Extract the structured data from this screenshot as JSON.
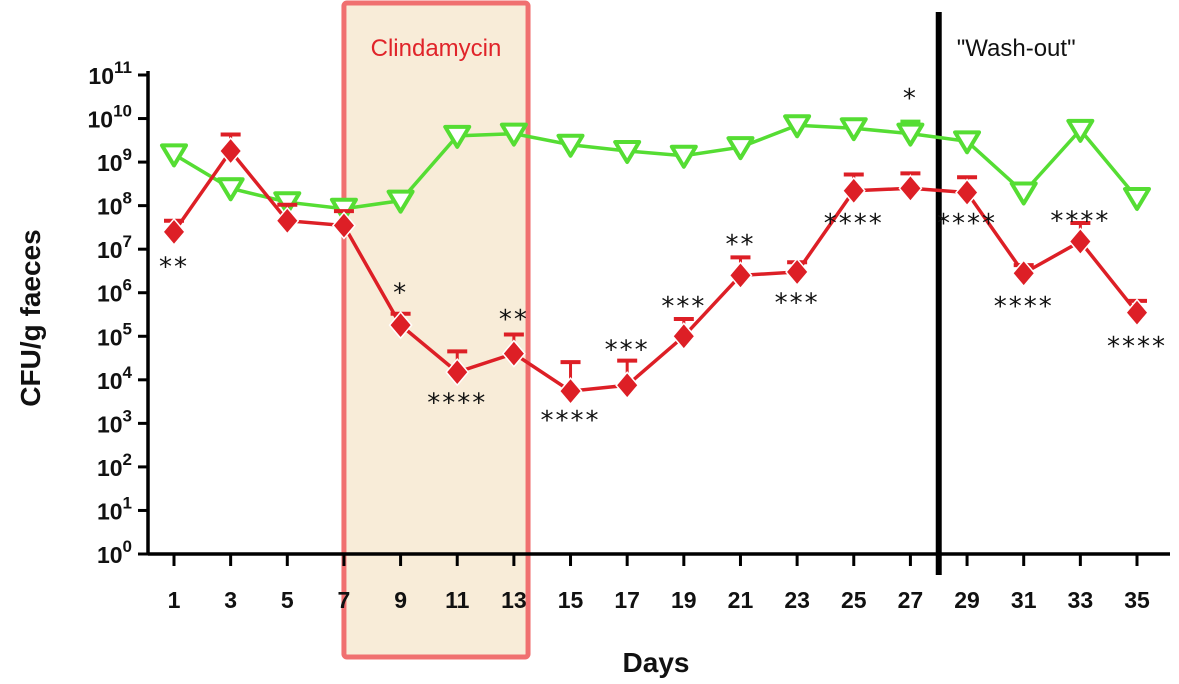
{
  "chart_data": {
    "type": "line",
    "xlabel": "Days",
    "ylabel": "CFU/g faeces",
    "log_scale_y": true,
    "ylim": [
      1,
      100000000000
    ],
    "xlim": [
      0,
      36
    ],
    "x_ticks": [
      1,
      3,
      5,
      7,
      9,
      11,
      13,
      15,
      17,
      19,
      21,
      23,
      25,
      27,
      29,
      31,
      33,
      35
    ],
    "y_ticks": [
      {
        "base": "10",
        "exp": "0",
        "value": 1
      },
      {
        "base": "10",
        "exp": "1",
        "value": 10
      },
      {
        "base": "10",
        "exp": "2",
        "value": 100
      },
      {
        "base": "10",
        "exp": "3",
        "value": 1000
      },
      {
        "base": "10",
        "exp": "4",
        "value": 10000
      },
      {
        "base": "10",
        "exp": "5",
        "value": 100000
      },
      {
        "base": "10",
        "exp": "6",
        "value": 1000000
      },
      {
        "base": "10",
        "exp": "7",
        "value": 10000000
      },
      {
        "base": "10",
        "exp": "8",
        "value": 100000000
      },
      {
        "base": "10",
        "exp": "9",
        "value": 1000000000
      },
      {
        "base": "10",
        "exp": "10",
        "value": 10000000000
      },
      {
        "base": "10",
        "exp": "11",
        "value": 100000000000
      }
    ],
    "series": [
      {
        "color": "#55dd33",
        "marker": "triangle-down",
        "points": [
          {
            "x": 1,
            "y": 1500000000,
            "err": 800000000
          },
          {
            "x": 3,
            "y": 250000000,
            "err": 150000000
          },
          {
            "x": 5,
            "y": 120000000,
            "err": 50000000
          },
          {
            "x": 7,
            "y": 85000000,
            "err": 30000000
          },
          {
            "x": 9,
            "y": 130000000,
            "err": 50000000
          },
          {
            "x": 11,
            "y": 4000000000,
            "err": 1500000000
          },
          {
            "x": 13,
            "y": 4500000000,
            "err": 1500000000
          },
          {
            "x": 15,
            "y": 2500000000,
            "err": 800000000
          },
          {
            "x": 17,
            "y": 1800000000,
            "err": 600000000
          },
          {
            "x": 19,
            "y": 1400000000,
            "err": 500000000
          },
          {
            "x": 21,
            "y": 2200000000,
            "err": 800000000
          },
          {
            "x": 23,
            "y": 7000000000,
            "err": 2500000000
          },
          {
            "x": 25,
            "y": 6000000000,
            "err": 2000000000
          },
          {
            "x": 27,
            "y": 4500000000,
            "err": 4000000000
          },
          {
            "x": 29,
            "y": 3000000000,
            "err": 1000000000
          },
          {
            "x": 31,
            "y": 200000000,
            "err": 50000000
          },
          {
            "x": 33,
            "y": 5500000000,
            "err": 2000000000
          },
          {
            "x": 35,
            "y": 150000000,
            "err": 40000000
          }
        ]
      },
      {
        "color": "#dd1f26",
        "marker": "diamond",
        "points": [
          {
            "x": 1,
            "y": 25000000,
            "err": 20000000
          },
          {
            "x": 3,
            "y": 1800000000,
            "err": 2500000000
          },
          {
            "x": 5,
            "y": 45000000,
            "err": 60000000
          },
          {
            "x": 7,
            "y": 35000000,
            "err": 40000000
          },
          {
            "x": 9,
            "y": 180000,
            "err": 150000
          },
          {
            "x": 11,
            "y": 15000,
            "err": 30000
          },
          {
            "x": 13,
            "y": 40000,
            "err": 70000
          },
          {
            "x": 15,
            "y": 5500,
            "err": 20000
          },
          {
            "x": 17,
            "y": 7500,
            "err": 20000
          },
          {
            "x": 19,
            "y": 100000,
            "err": 150000
          },
          {
            "x": 21,
            "y": 2500000,
            "err": 4000000
          },
          {
            "x": 23,
            "y": 3000000,
            "err": 2000000
          },
          {
            "x": 25,
            "y": 220000000,
            "err": 300000000
          },
          {
            "x": 27,
            "y": 250000000,
            "err": 300000000
          },
          {
            "x": 29,
            "y": 200000000,
            "err": 250000000
          },
          {
            "x": 31,
            "y": 2800000,
            "err": 1500000
          },
          {
            "x": 33,
            "y": 15000000,
            "err": 25000000
          },
          {
            "x": 35,
            "y": 350000,
            "err": 300000
          }
        ]
      }
    ],
    "annotations": [
      {
        "text": "**",
        "x": 1,
        "y": 4000000
      },
      {
        "text": "*",
        "x": 9,
        "y": 1000000
      },
      {
        "text": "****",
        "x": 11,
        "y": 3000
      },
      {
        "text": "**",
        "x": 13,
        "y": 250000
      },
      {
        "text": "****",
        "x": 15,
        "y": 1200
      },
      {
        "text": "***",
        "x": 17,
        "y": 50000
      },
      {
        "text": "***",
        "x": 19,
        "y": 500000
      },
      {
        "text": "**",
        "x": 21,
        "y": 13000000
      },
      {
        "text": "***",
        "x": 23,
        "y": 600000
      },
      {
        "text": "****",
        "x": 25,
        "y": 40000000
      },
      {
        "text": "*",
        "x": 27,
        "y": 30000000000
      },
      {
        "text": "****",
        "x": 29,
        "y": 40000000
      },
      {
        "text": "****",
        "x": 31,
        "y": 500000
      },
      {
        "text": "****",
        "x": 33,
        "y": 45000000
      },
      {
        "text": "****",
        "x": 35,
        "y": 60000
      }
    ],
    "shaded_region": {
      "label": "Clindamycin",
      "x_start": 7,
      "x_end": 13.5,
      "color": "#f07070",
      "fill": "#f8ecd8"
    },
    "vertical_line": {
      "label": "\"Wash-out\"",
      "x": 28
    }
  }
}
